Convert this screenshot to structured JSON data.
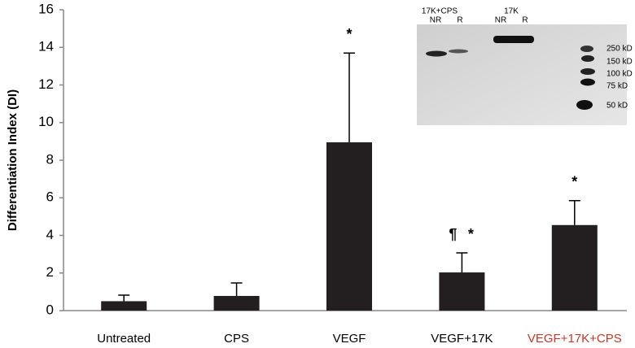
{
  "chart_data": {
    "type": "bar",
    "y_label": "Differentiation Index (DI)",
    "categories": [
      "Untreated",
      "CPS",
      "VEGF",
      "VEGF+17K",
      "VEGF+17K+CPS"
    ],
    "category_colors": [
      "#000000",
      "#000000",
      "#000000",
      "#000000",
      "#c0392b"
    ],
    "values": [
      0.5,
      0.78,
      8.95,
      2.03,
      4.55
    ],
    "errors": [
      0.32,
      0.69,
      4.75,
      1.04,
      1.3
    ],
    "color": "#231f20",
    "ylim": [
      0,
      16
    ],
    "yticks": [
      0,
      2,
      4,
      6,
      8,
      10,
      12,
      14,
      16
    ],
    "annotations": [
      {
        "text": "*",
        "category": 2
      },
      {
        "text": "¶",
        "category": 3
      },
      {
        "text": "*",
        "category": 3
      },
      {
        "text": "*",
        "category": 4
      }
    ],
    "inset": {
      "group_labels": [
        "17K+CPS",
        "17K"
      ],
      "lane_labels": [
        "NR",
        "R",
        "NR",
        "R"
      ],
      "marker_labels": [
        "250 kD",
        "150 kD",
        "100 kD",
        "75 kD",
        "50 kD"
      ]
    }
  }
}
